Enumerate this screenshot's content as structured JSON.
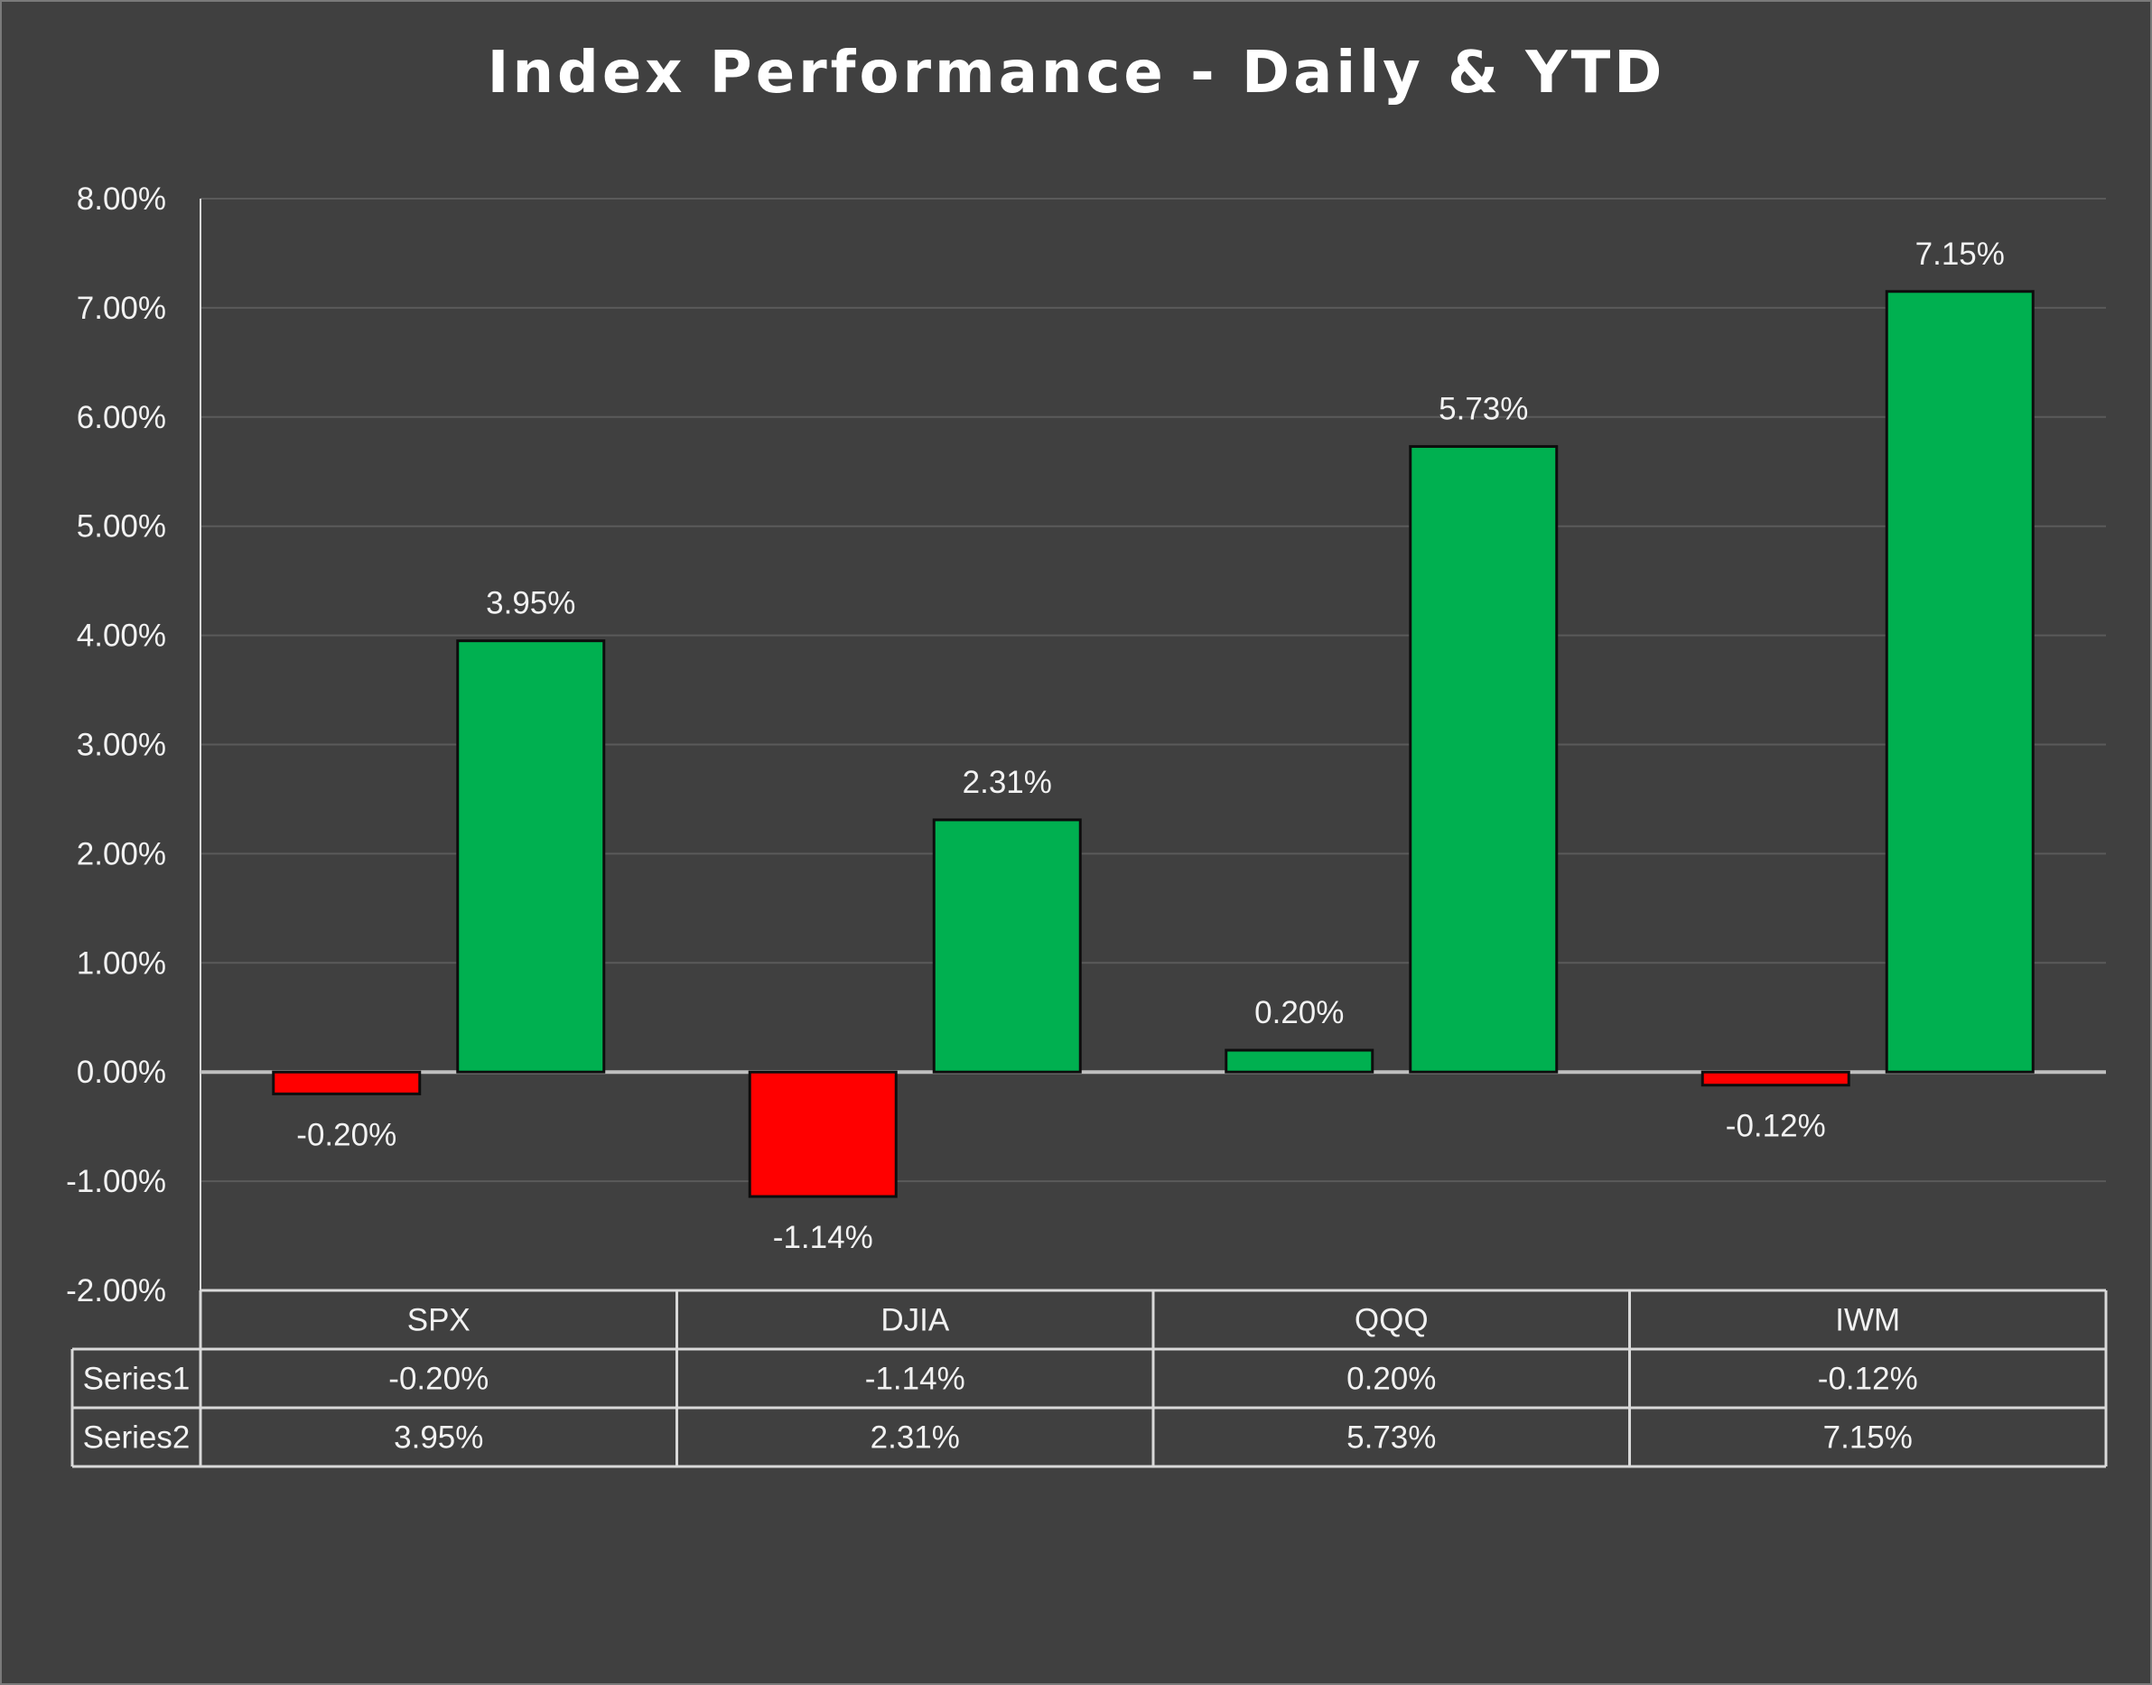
{
  "chart_data": {
    "type": "bar",
    "title": "Index Performance - Daily & YTD",
    "categories": [
      "SPX",
      "DJIA",
      "QQQ",
      "IWM"
    ],
    "series": [
      {
        "name": "Series1",
        "values": [
          -0.2,
          -1.14,
          0.2,
          -0.12
        ],
        "labels": [
          "-0.20%",
          "-1.14%",
          "0.20%",
          "-0.12%"
        ]
      },
      {
        "name": "Series2",
        "values": [
          3.95,
          2.31,
          5.73,
          7.15
        ],
        "labels": [
          "3.95%",
          "2.31%",
          "5.73%",
          "7.15%"
        ]
      }
    ],
    "ylim": [
      -2,
      8
    ],
    "yticks": [
      8,
      7,
      6,
      5,
      4,
      3,
      2,
      1,
      0,
      -1,
      -2
    ],
    "ytick_labels": [
      "8.00%",
      "7.00%",
      "6.00%",
      "5.00%",
      "4.00%",
      "3.00%",
      "2.00%",
      "1.00%",
      "0.00%",
      "-1.00%",
      "-2.00%"
    ],
    "grid": true,
    "legend": "data table below chart",
    "data_table": true,
    "colors": {
      "background": "#404040",
      "positive": "#00b050",
      "negative": "#ff0000",
      "text": "#f2f2f2",
      "gridline": "#5a5a5a",
      "zero_line": "#bfbfbf",
      "table_line": "#d9d9d9"
    }
  }
}
